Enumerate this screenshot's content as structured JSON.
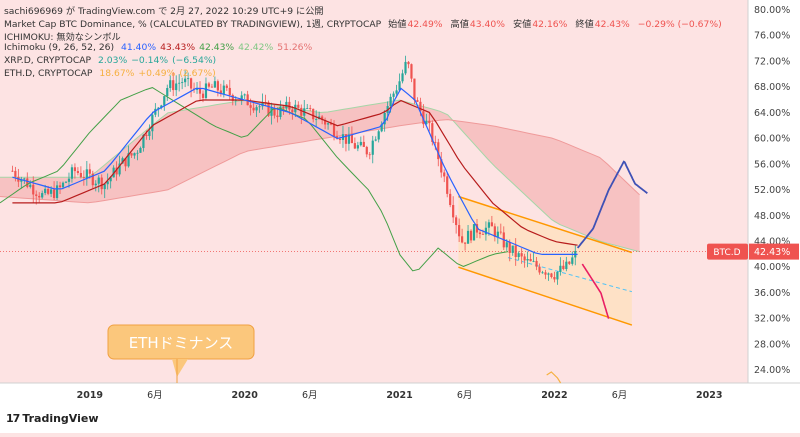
{
  "header": {
    "line1_prefix": "sachi696969 が TradingView.com で 2月 27, 2022 10:29 UTC+9 に公開",
    "title": "Market Cap BTC Dominance, % (CALCULATED BY TRADINGVIEW), 1週, CRYPTOCAP",
    "ohlc": [
      {
        "label": "始値",
        "value": "42.49%"
      },
      {
        "label": "高値",
        "value": "43.40%"
      },
      {
        "label": "安値",
        "value": "42.16%"
      },
      {
        "label": "終値",
        "value": "42.43%"
      },
      {
        "label": "",
        "value": "−0.29% (−0.67%)"
      }
    ],
    "ichimoku_name": "ICHIMOKU: 無効なシンボル",
    "ichimoku_label": "Ichimoku (9, 26, 52, 26)",
    "ichimoku_values": [
      "41.40%",
      "43.43%",
      "42.43%",
      "42.42%",
      "51.26%"
    ],
    "xrp_label": "XRP.D, CRYPTOCAP",
    "xrp_values": [
      "2.03%",
      "−0.14%",
      "(−6.54%)"
    ],
    "eth_label": "ETH.D, CRYPTOCAP",
    "eth_values": [
      "18.67%",
      "+0.49%",
      "(2.67%)"
    ]
  },
  "colors": {
    "background": "#fde3e3",
    "candle_up": "#26a69a",
    "candle_down": "#ef5350",
    "tenkan": "#2962ff",
    "kijun": "#b71c1c",
    "chikou": "#43a047",
    "cloud": "#ef9a9a",
    "channel": "#ff9800",
    "forecast_up": "#3f51b5",
    "forecast_down": "#e91e63",
    "price_tag": "#ef5350",
    "eth_line": "#f5b041",
    "xrp_text": "#26a69a"
  },
  "annotation": {
    "text": "ETHドミナンス"
  },
  "price_tag": {
    "label": "BTC.D",
    "value": "42.43%"
  },
  "footer": {
    "brand": "TradingView"
  },
  "chart_data": {
    "type": "candlestick",
    "title": "Market Cap BTC Dominance, %",
    "ylabel": "",
    "ylim": [
      22,
      80
    ],
    "y_ticks": [
      "80.00%",
      "76.00%",
      "72.00%",
      "68.00%",
      "64.00%",
      "60.00%",
      "56.00%",
      "52.00%",
      "48.00%",
      "44.00%",
      "40.00%",
      "36.00%",
      "32.00%",
      "28.00%",
      "24.00%"
    ],
    "y_tick_values": [
      80,
      76,
      72,
      68,
      64,
      60,
      56,
      52,
      48,
      44,
      40,
      36,
      32,
      28,
      24
    ],
    "x_ticks": [
      "2019",
      "6月",
      "2020",
      "6月",
      "2021",
      "6月",
      "2022",
      "6月",
      "2023"
    ],
    "x_tick_values": [
      2019.0,
      2019.42,
      2020.0,
      2020.42,
      2021.0,
      2021.42,
      2022.0,
      2022.42,
      2023.0
    ],
    "xlim": [
      2018.42,
      2023.25
    ],
    "current_value": 42.43,
    "close_series": {
      "x": [
        2018.5,
        2018.6,
        2018.7,
        2018.8,
        2018.9,
        2019.0,
        2019.1,
        2019.2,
        2019.3,
        2019.4,
        2019.5,
        2019.6,
        2019.7,
        2019.8,
        2019.9,
        2020.0,
        2020.1,
        2020.2,
        2020.3,
        2020.4,
        2020.5,
        2020.6,
        2020.7,
        2020.8,
        2020.9,
        2021.0,
        2021.05,
        2021.1,
        2021.2,
        2021.3,
        2021.4,
        2021.5,
        2021.6,
        2021.7,
        2021.8,
        2021.9,
        2022.0,
        2022.08,
        2022.15
      ],
      "values": [
        55,
        53,
        51,
        52,
        55,
        54,
        53,
        56,
        58,
        63,
        68,
        69,
        67,
        68,
        67,
        66,
        65,
        64,
        65,
        64,
        63,
        61,
        59,
        58,
        64,
        69,
        72,
        66,
        61,
        53,
        44,
        46,
        46,
        43,
        41,
        40,
        39,
        40,
        42.43
      ]
    },
    "ichimoku": {
      "tenkan": {
        "x": [
          2018.5,
          2018.8,
          2019.1,
          2019.4,
          2019.7,
          2020.0,
          2020.3,
          2020.6,
          2020.9,
          2021.0,
          2021.1,
          2021.3,
          2021.5,
          2021.7,
          2021.9,
          2022.15
        ],
        "values": [
          54,
          52,
          55,
          64,
          68,
          66,
          64,
          60,
          62,
          68,
          66,
          55,
          46,
          44,
          42,
          42
        ]
      },
      "kijun": {
        "x": [
          2018.5,
          2018.8,
          2019.1,
          2019.4,
          2019.7,
          2020.0,
          2020.3,
          2020.6,
          2020.9,
          2021.0,
          2021.2,
          2021.4,
          2021.6,
          2021.8,
          2022.0,
          2022.15
        ],
        "values": [
          50,
          50,
          53,
          62,
          66,
          66,
          65,
          62,
          64,
          66,
          64,
          56,
          50,
          46,
          44,
          43.43
        ]
      },
      "chikou": {
        "x": [
          2018.42,
          2018.6,
          2018.8,
          2019.0,
          2019.2,
          2019.4,
          2019.6,
          2019.8,
          2020.0,
          2020.2,
          2020.4,
          2020.6,
          2020.8,
          2020.9,
          2021.0,
          2021.1,
          2021.25,
          2021.4,
          2021.6,
          2021.7
        ],
        "values": [
          50,
          53,
          55,
          61,
          66,
          68,
          65,
          62,
          60,
          65,
          63,
          57,
          52,
          48,
          42,
          39,
          43,
          40,
          42,
          42.43
        ]
      },
      "span_a": {
        "x": [
          2018.42,
          2019.0,
          2019.5,
          2020.0,
          2020.5,
          2021.0,
          2021.3,
          2021.6,
          2022.0,
          2022.3,
          2022.55
        ],
        "values": [
          54,
          54,
          64,
          66,
          64,
          66,
          64,
          56,
          47,
          44,
          42.42
        ]
      },
      "span_b": {
        "x": [
          2018.42,
          2019.0,
          2019.5,
          2020.0,
          2020.5,
          2021.0,
          2021.3,
          2021.6,
          2022.0,
          2022.3,
          2022.55
        ],
        "values": [
          51,
          50,
          52,
          58,
          60,
          62,
          63,
          62,
          60,
          57,
          51.26
        ]
      }
    },
    "channel": {
      "upper": {
        "x": [
          2021.38,
          2022.5
        ],
        "values": [
          51,
          42.3
        ]
      },
      "lower": {
        "x": [
          2021.38,
          2022.5
        ],
        "values": [
          40,
          31
        ]
      },
      "mid": {
        "x": [
          2021.7,
          2022.5
        ],
        "values": [
          41.5,
          36.2
        ]
      }
    },
    "forecast": {
      "up": {
        "x": [
          2022.15,
          2022.25,
          2022.35,
          2022.45,
          2022.52,
          2022.6
        ],
        "values": [
          43,
          46,
          52,
          56.5,
          53,
          51.5
        ]
      },
      "down": {
        "x": [
          2022.18,
          2022.3,
          2022.35
        ],
        "values": [
          40.5,
          36,
          32
        ]
      }
    }
  }
}
